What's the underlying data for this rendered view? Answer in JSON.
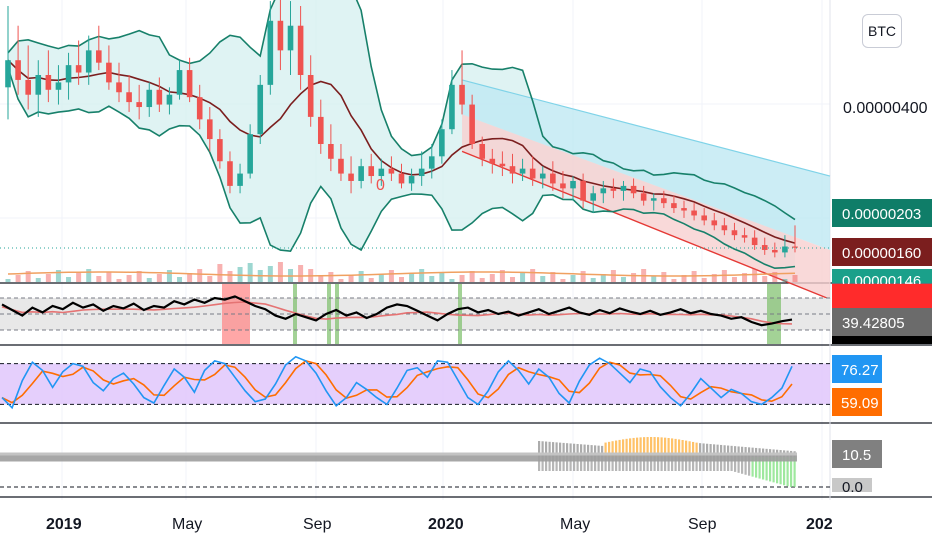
{
  "currency_button": "BTC",
  "colors": {
    "up": "#26a69a",
    "down": "#ef5350",
    "basis": "#7b1e1e",
    "band": "#17806a",
    "band_fill": "#d4efef",
    "channel_upper_fill": "#bfe9f3",
    "channel_lower_fill": "#f7cfcf",
    "channel_line": "#e53935",
    "rsi_line": "#000000",
    "rsi_ma": "#e57373",
    "stoch_k": "#2196f3",
    "stoch_d": "#ff6d00",
    "stoch_fill": "#e1c7fb",
    "hist_neg": "#7ee07e",
    "hist_pos": "#ffb74d",
    "hist_gray": "#9e9e9e"
  },
  "chart_data": [
    {
      "type": "candlestick",
      "x_axis": {
        "ticks": [
          "2019",
          "May",
          "Sep",
          "2020",
          "May",
          "Sep",
          "202"
        ]
      },
      "y_axis": {
        "ticks": [
          "0.00000400"
        ]
      },
      "price_badges": [
        {
          "label": "0.00000203",
          "color": "#0f7d68"
        },
        {
          "label": "0.00000160",
          "color": "#7b1e1e"
        },
        {
          "label": "0.00000146",
          "color": "#1aa08a"
        }
      ],
      "annotation": "0",
      "ylim": [
        9e-07,
        6.5e-06
      ],
      "candles": [
        {
          "o": 4.85,
          "h": 6.5,
          "l": 4.2,
          "c": 5.4
        },
        {
          "o": 5.4,
          "h": 6.1,
          "l": 4.7,
          "c": 5.0
        },
        {
          "o": 5.0,
          "h": 5.7,
          "l": 4.4,
          "c": 4.7
        },
        {
          "o": 4.7,
          "h": 5.4,
          "l": 4.25,
          "c": 5.1
        },
        {
          "o": 5.1,
          "h": 5.6,
          "l": 4.55,
          "c": 4.8
        },
        {
          "o": 4.8,
          "h": 5.3,
          "l": 4.5,
          "c": 4.95
        },
        {
          "o": 4.95,
          "h": 5.55,
          "l": 4.6,
          "c": 5.3
        },
        {
          "o": 5.3,
          "h": 5.8,
          "l": 4.9,
          "c": 5.15
        },
        {
          "o": 5.15,
          "h": 5.9,
          "l": 4.9,
          "c": 5.6
        },
        {
          "o": 5.6,
          "h": 6.1,
          "l": 5.2,
          "c": 5.35
        },
        {
          "o": 5.35,
          "h": 5.7,
          "l": 4.8,
          "c": 4.95
        },
        {
          "o": 4.95,
          "h": 5.35,
          "l": 4.55,
          "c": 4.75
        },
        {
          "o": 4.75,
          "h": 5.1,
          "l": 4.35,
          "c": 4.55
        },
        {
          "o": 4.55,
          "h": 4.9,
          "l": 4.2,
          "c": 4.45
        },
        {
          "o": 4.45,
          "h": 4.95,
          "l": 4.25,
          "c": 4.8
        },
        {
          "o": 4.8,
          "h": 5.05,
          "l": 4.35,
          "c": 4.5
        },
        {
          "o": 4.5,
          "h": 4.85,
          "l": 4.3,
          "c": 4.7
        },
        {
          "o": 4.7,
          "h": 5.4,
          "l": 4.6,
          "c": 5.2
        },
        {
          "o": 5.2,
          "h": 5.45,
          "l": 4.55,
          "c": 4.65
        },
        {
          "o": 4.65,
          "h": 4.9,
          "l": 4.0,
          "c": 4.2
        },
        {
          "o": 4.2,
          "h": 4.45,
          "l": 3.55,
          "c": 3.8
        },
        {
          "o": 3.8,
          "h": 4.0,
          "l": 3.2,
          "c": 3.35
        },
        {
          "o": 3.35,
          "h": 3.55,
          "l": 2.7,
          "c": 2.85
        },
        {
          "o": 2.85,
          "h": 3.3,
          "l": 2.7,
          "c": 3.1
        },
        {
          "o": 3.1,
          "h": 4.1,
          "l": 3.0,
          "c": 3.9
        },
        {
          "o": 3.9,
          "h": 5.1,
          "l": 3.7,
          "c": 4.9
        },
        {
          "o": 4.9,
          "h": 6.6,
          "l": 4.7,
          "c": 6.2
        },
        {
          "o": 6.2,
          "h": 6.8,
          "l": 5.2,
          "c": 5.6
        },
        {
          "o": 5.6,
          "h": 6.6,
          "l": 5.1,
          "c": 6.1
        },
        {
          "o": 6.1,
          "h": 6.5,
          "l": 4.8,
          "c": 5.1
        },
        {
          "o": 5.1,
          "h": 5.5,
          "l": 4.05,
          "c": 4.25
        },
        {
          "o": 4.25,
          "h": 4.6,
          "l": 3.5,
          "c": 3.7
        },
        {
          "o": 3.7,
          "h": 4.1,
          "l": 3.15,
          "c": 3.4
        },
        {
          "o": 3.4,
          "h": 3.7,
          "l": 2.95,
          "c": 3.1
        },
        {
          "o": 3.1,
          "h": 3.45,
          "l": 2.7,
          "c": 2.95
        },
        {
          "o": 2.95,
          "h": 3.4,
          "l": 2.8,
          "c": 3.25
        },
        {
          "o": 3.25,
          "h": 3.5,
          "l": 2.9,
          "c": 3.05
        },
        {
          "o": 3.05,
          "h": 3.4,
          "l": 2.85,
          "c": 3.2
        },
        {
          "o": 3.2,
          "h": 3.45,
          "l": 2.95,
          "c": 3.1
        },
        {
          "o": 3.1,
          "h": 3.3,
          "l": 2.8,
          "c": 2.9
        },
        {
          "o": 2.9,
          "h": 3.2,
          "l": 2.75,
          "c": 3.05
        },
        {
          "o": 3.05,
          "h": 3.55,
          "l": 2.85,
          "c": 3.2
        },
        {
          "o": 3.2,
          "h": 3.7,
          "l": 3.0,
          "c": 3.45
        },
        {
          "o": 3.45,
          "h": 4.2,
          "l": 3.3,
          "c": 4.0
        },
        {
          "o": 4.0,
          "h": 5.2,
          "l": 3.9,
          "c": 4.9
        },
        {
          "o": 4.9,
          "h": 5.6,
          "l": 4.3,
          "c": 4.5
        },
        {
          "o": 4.5,
          "h": 4.7,
          "l": 3.6,
          "c": 3.7
        },
        {
          "o": 3.7,
          "h": 3.85,
          "l": 3.25,
          "c": 3.4
        },
        {
          "o": 3.4,
          "h": 3.6,
          "l": 3.1,
          "c": 3.3
        },
        {
          "o": 3.3,
          "h": 3.55,
          "l": 3.05,
          "c": 3.25
        },
        {
          "o": 3.25,
          "h": 3.5,
          "l": 2.9,
          "c": 3.1
        },
        {
          "o": 3.1,
          "h": 3.4,
          "l": 2.95,
          "c": 3.2
        },
        {
          "o": 3.2,
          "h": 3.45,
          "l": 2.85,
          "c": 3.0
        },
        {
          "o": 3.0,
          "h": 3.25,
          "l": 2.8,
          "c": 3.1
        },
        {
          "o": 3.1,
          "h": 3.35,
          "l": 2.75,
          "c": 2.9
        },
        {
          "o": 2.9,
          "h": 3.15,
          "l": 2.6,
          "c": 2.8
        },
        {
          "o": 2.8,
          "h": 3.05,
          "l": 2.55,
          "c": 2.95
        },
        {
          "o": 2.95,
          "h": 3.1,
          "l": 2.4,
          "c": 2.55
        },
        {
          "o": 2.55,
          "h": 2.85,
          "l": 2.3,
          "c": 2.7
        },
        {
          "o": 2.7,
          "h": 2.95,
          "l": 2.5,
          "c": 2.8
        },
        {
          "o": 2.8,
          "h": 3.0,
          "l": 2.6,
          "c": 2.75
        },
        {
          "o": 2.75,
          "h": 2.95,
          "l": 2.55,
          "c": 2.85
        },
        {
          "o": 2.85,
          "h": 3.0,
          "l": 2.6,
          "c": 2.7
        },
        {
          "o": 2.7,
          "h": 2.85,
          "l": 2.45,
          "c": 2.55
        },
        {
          "o": 2.55,
          "h": 2.7,
          "l": 2.35,
          "c": 2.6
        },
        {
          "o": 2.6,
          "h": 2.75,
          "l": 2.4,
          "c": 2.5
        },
        {
          "o": 2.5,
          "h": 2.65,
          "l": 2.3,
          "c": 2.4
        },
        {
          "o": 2.4,
          "h": 2.55,
          "l": 2.2,
          "c": 2.35
        },
        {
          "o": 2.35,
          "h": 2.5,
          "l": 2.15,
          "c": 2.25
        },
        {
          "o": 2.25,
          "h": 2.4,
          "l": 2.05,
          "c": 2.15
        },
        {
          "o": 2.15,
          "h": 2.3,
          "l": 1.95,
          "c": 2.05
        },
        {
          "o": 2.05,
          "h": 2.2,
          "l": 1.85,
          "c": 1.95
        },
        {
          "o": 1.95,
          "h": 2.1,
          "l": 1.75,
          "c": 1.85
        },
        {
          "o": 1.85,
          "h": 2.0,
          "l": 1.7,
          "c": 1.8
        },
        {
          "o": 1.8,
          "h": 1.95,
          "l": 1.55,
          "c": 1.65
        },
        {
          "o": 1.65,
          "h": 1.8,
          "l": 1.45,
          "c": 1.55
        },
        {
          "o": 1.55,
          "h": 1.7,
          "l": 1.4,
          "c": 1.5
        },
        {
          "o": 1.5,
          "h": 1.85,
          "l": 1.4,
          "c": 1.62
        },
        {
          "o": 1.62,
          "h": 2.05,
          "l": 1.5,
          "c": 1.6
        }
      ]
    },
    {
      "type": "line",
      "name": "",
      "badge": "39.42805",
      "badge_color": "#6b6b6b",
      "ylim": [
        0,
        100
      ],
      "series_values": [
        62,
        55,
        48,
        58,
        52,
        60,
        56,
        64,
        58,
        62,
        54,
        60,
        57,
        63,
        55,
        60,
        58,
        66,
        62,
        68,
        64,
        70,
        68,
        72,
        66,
        60,
        56,
        48,
        44,
        50,
        46,
        42,
        50,
        55,
        48,
        52,
        45,
        50,
        58,
        62,
        60,
        54,
        48,
        42,
        50,
        56,
        58,
        52,
        55,
        50,
        53,
        48,
        52,
        56,
        50,
        54,
        58,
        52,
        49,
        55,
        51,
        57,
        53,
        50,
        54,
        49,
        52,
        56,
        51,
        54,
        50,
        48,
        44,
        46,
        40,
        36,
        38,
        41,
        43
      ]
    },
    {
      "type": "line",
      "name": "",
      "badges": [
        {
          "label": "76.27",
          "color": "#2196f3"
        },
        {
          "label": "59.09",
          "color": "#ff6d00"
        }
      ],
      "ylim": [
        0,
        100
      ],
      "k_values": [
        30,
        15,
        55,
        82,
        70,
        45,
        68,
        80,
        76,
        52,
        40,
        58,
        66,
        50,
        30,
        22,
        48,
        72,
        60,
        38,
        70,
        84,
        80,
        60,
        40,
        24,
        28,
        50,
        78,
        90,
        84,
        66,
        40,
        18,
        30,
        52,
        42,
        30,
        20,
        44,
        70,
        74,
        60,
        84,
        82,
        56,
        30,
        20,
        40,
        68,
        84,
        70,
        50,
        72,
        60,
        36,
        22,
        54,
        78,
        88,
        80,
        66,
        52,
        72,
        68,
        46,
        30,
        18,
        36,
        58,
        44,
        30,
        42,
        36,
        24,
        20,
        30,
        44,
        76
      ]
    },
    {
      "type": "bar",
      "name": "",
      "badges": [
        {
          "label": "10.5",
          "color": "#808080"
        },
        {
          "label": "0.0",
          "color": "#c8c8c8"
        }
      ]
    }
  ]
}
